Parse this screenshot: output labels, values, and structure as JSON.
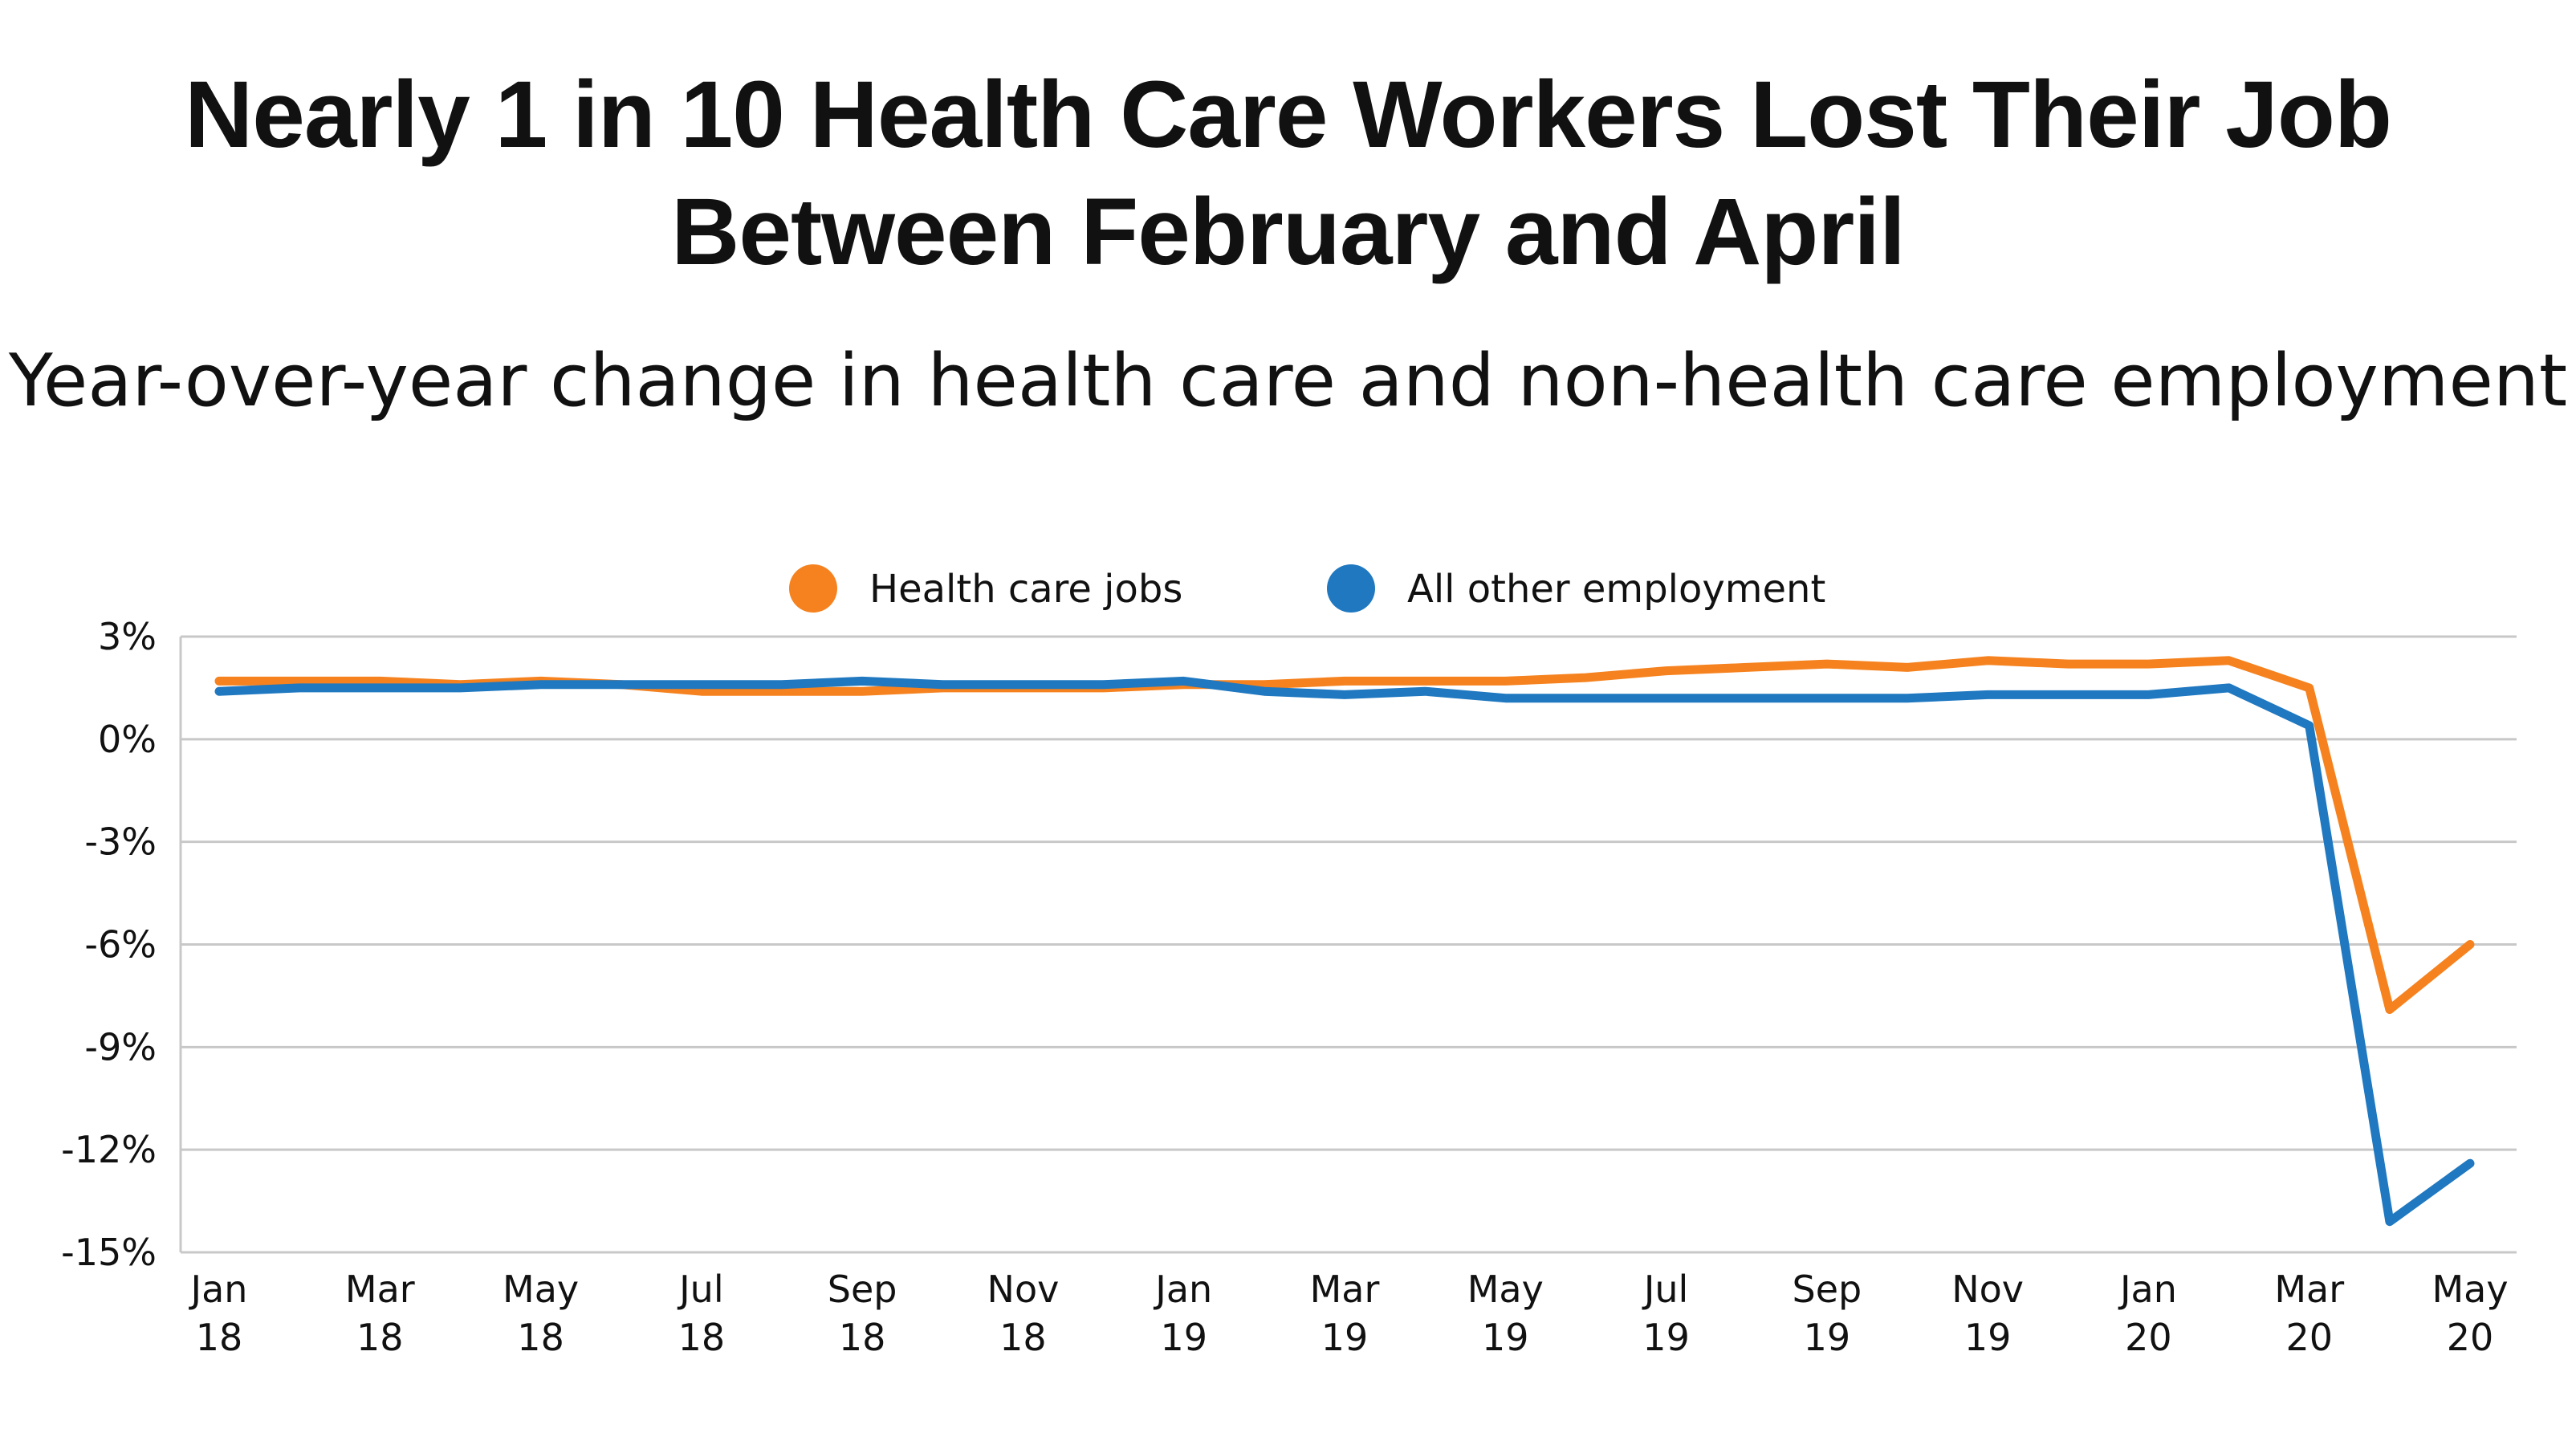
{
  "title_line1": "Nearly 1 in 10 Health Care Workers Lost Their Job",
  "title_line2": "Between February and April",
  "subtitle": "Year-over-year change in health care and non-health care employment",
  "chart_data": {
    "type": "line",
    "title": "Nearly 1 in 10 Health Care Workers Lost Their Job Between February and April",
    "subtitle": "Year-over-year change in health care and non-health care employment",
    "xlabel": "",
    "ylabel": "",
    "ylim": [
      -15,
      3
    ],
    "yticks": [
      3,
      0,
      -3,
      -6,
      -9,
      -12,
      -15
    ],
    "ytick_labels": [
      "3%",
      "0%",
      "-3%",
      "-6%",
      "-9%",
      "-12%",
      "-15%"
    ],
    "grid": true,
    "legend_position": "top-center",
    "x": [
      "Jan 18",
      "Feb 18",
      "Mar 18",
      "Apr 18",
      "May 18",
      "Jun 18",
      "Jul 18",
      "Aug 18",
      "Sep 18",
      "Oct 18",
      "Nov 18",
      "Dec 18",
      "Jan 19",
      "Feb 19",
      "Mar 19",
      "Apr 19",
      "May 19",
      "Jun 19",
      "Jul 19",
      "Aug 19",
      "Sep 19",
      "Oct 19",
      "Nov 19",
      "Dec 19",
      "Jan 20",
      "Feb 20",
      "Mar 20",
      "Apr 20",
      "May 20"
    ],
    "xtick_labels": [
      {
        "index": 0,
        "top": "Jan",
        "bottom": "18"
      },
      {
        "index": 2,
        "top": "Mar",
        "bottom": "18"
      },
      {
        "index": 4,
        "top": "May",
        "bottom": "18"
      },
      {
        "index": 6,
        "top": "Jul",
        "bottom": "18"
      },
      {
        "index": 8,
        "top": "Sep",
        "bottom": "18"
      },
      {
        "index": 10,
        "top": "Nov",
        "bottom": "18"
      },
      {
        "index": 12,
        "top": "Jan",
        "bottom": "19"
      },
      {
        "index": 14,
        "top": "Mar",
        "bottom": "19"
      },
      {
        "index": 16,
        "top": "May",
        "bottom": "19"
      },
      {
        "index": 18,
        "top": "Jul",
        "bottom": "19"
      },
      {
        "index": 20,
        "top": "Sep",
        "bottom": "19"
      },
      {
        "index": 22,
        "top": "Nov",
        "bottom": "19"
      },
      {
        "index": 24,
        "top": "Jan",
        "bottom": "20"
      },
      {
        "index": 26,
        "top": "Mar",
        "bottom": "20"
      },
      {
        "index": 28,
        "top": "May",
        "bottom": "20"
      }
    ],
    "series": [
      {
        "name": "Health care jobs",
        "color": "#F5821F",
        "values": [
          1.7,
          1.7,
          1.7,
          1.6,
          1.7,
          1.6,
          1.4,
          1.4,
          1.4,
          1.5,
          1.5,
          1.5,
          1.6,
          1.6,
          1.7,
          1.7,
          1.7,
          1.8,
          2.0,
          2.1,
          2.2,
          2.1,
          2.3,
          2.2,
          2.2,
          2.3,
          1.5,
          -7.9,
          -6.0
        ]
      },
      {
        "name": "All other employment",
        "color": "#1F78C0",
        "values": [
          1.4,
          1.5,
          1.5,
          1.5,
          1.6,
          1.6,
          1.6,
          1.6,
          1.7,
          1.6,
          1.6,
          1.6,
          1.7,
          1.4,
          1.3,
          1.4,
          1.2,
          1.2,
          1.2,
          1.2,
          1.2,
          1.2,
          1.3,
          1.3,
          1.3,
          1.5,
          0.4,
          -14.1,
          -12.4
        ]
      }
    ]
  }
}
